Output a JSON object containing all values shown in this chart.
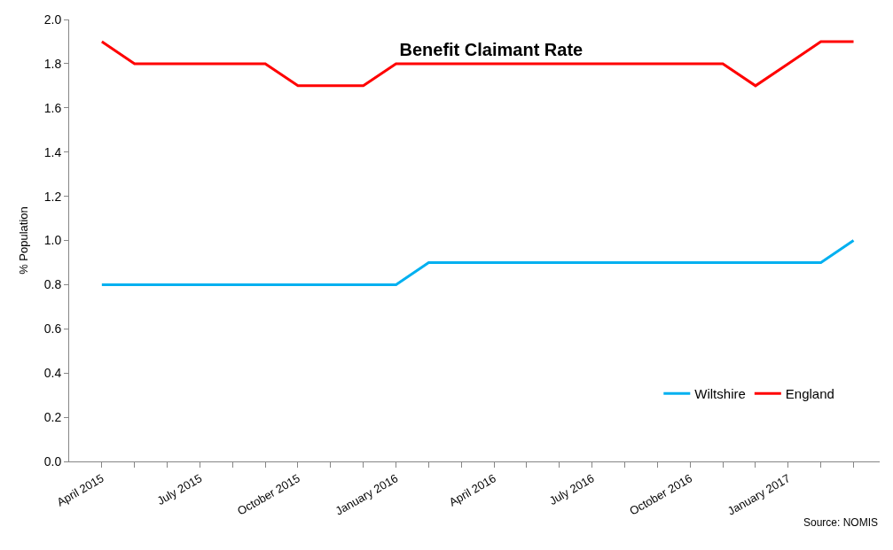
{
  "chart_data": {
    "type": "line",
    "title": "Benefit Claimant Rate",
    "ylabel": "% Population",
    "categories": [
      "April 2015",
      null,
      null,
      "July 2015",
      null,
      null,
      "October 2015",
      null,
      null,
      "January 2016",
      null,
      null,
      "April 2016",
      null,
      null,
      "July 2016",
      null,
      null,
      "October 2016",
      null,
      null,
      "January 2017",
      null,
      null
    ],
    "series": [
      {
        "name": "Wiltshire",
        "color": "#00b0f0",
        "values": [
          0.8,
          0.8,
          0.8,
          0.8,
          0.8,
          0.8,
          0.8,
          0.8,
          0.8,
          0.8,
          0.9,
          0.9,
          0.9,
          0.9,
          0.9,
          0.9,
          0.9,
          0.9,
          0.9,
          0.9,
          0.9,
          0.9,
          0.9,
          1.0
        ]
      },
      {
        "name": "England",
        "color": "#ff0000",
        "values": [
          1.9,
          1.8,
          1.8,
          1.8,
          1.8,
          1.8,
          1.7,
          1.7,
          1.7,
          1.8,
          1.8,
          1.8,
          1.8,
          1.8,
          1.8,
          1.8,
          1.8,
          1.8,
          1.8,
          1.8,
          1.7,
          1.8,
          1.9,
          1.9
        ]
      }
    ],
    "ylim": [
      0,
      2
    ],
    "yticks": [
      {
        "value": 0,
        "label": "0.0"
      },
      {
        "value": 0.2,
        "label": "0.2"
      },
      {
        "value": 0.4,
        "label": "0.4"
      },
      {
        "value": 0.6,
        "label": "0.6"
      },
      {
        "value": 0.8,
        "label": "0.8"
      },
      {
        "value": 1,
        "label": "1.0"
      },
      {
        "value": 1.2,
        "label": "1.2"
      },
      {
        "value": 1.4,
        "label": "1.4"
      },
      {
        "value": 1.6,
        "label": "1.6"
      },
      {
        "value": 1.8,
        "label": "1.8"
      },
      {
        "value": 2,
        "label": "2.0"
      }
    ],
    "grid": false,
    "legend": "bottom right",
    "marker": "none",
    "line_style": "solid",
    "annotations": [
      "Source: NOMIS"
    ]
  }
}
